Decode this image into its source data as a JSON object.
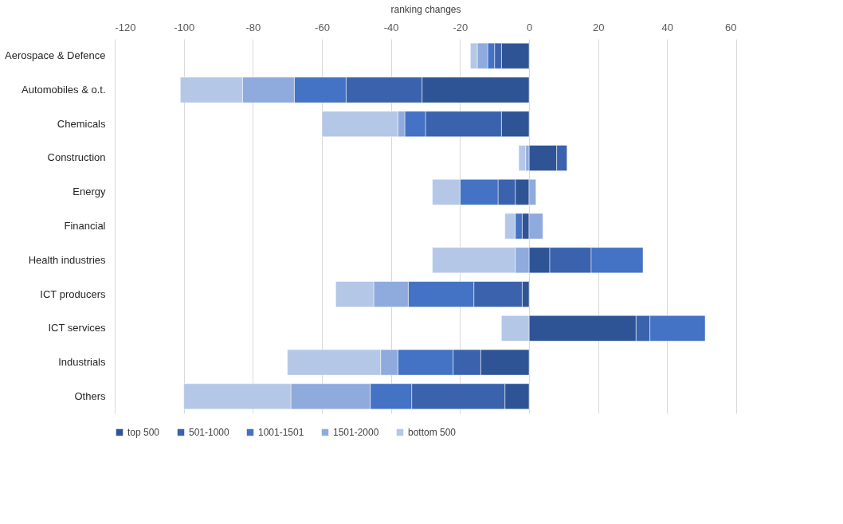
{
  "chart_data": {
    "type": "bar",
    "orientation": "horizontal",
    "stacked": true,
    "xlabel": "ranking changes",
    "categories": [
      "Aerospace & Defence",
      "Automobiles & o.t.",
      "Chemicals",
      "Construction",
      "Energy",
      "Financial",
      "Health industries",
      "ICT producers",
      "ICT services",
      "Industrials",
      "Others"
    ],
    "series": [
      {
        "name": "top 500",
        "color": "#2f5496",
        "values": [
          -8,
          -31,
          -8,
          8,
          -4,
          -2,
          6,
          -2,
          31,
          -14,
          -7
        ]
      },
      {
        "name": "501-1000",
        "color": "#3b62ad",
        "values": [
          -2,
          -22,
          -22,
          3,
          -5,
          null,
          12,
          -14,
          4,
          -8,
          -27
        ]
      },
      {
        "name": "1001-1501",
        "color": "#4472c4",
        "values": [
          -2,
          -15,
          -6,
          null,
          -11,
          -2,
          15,
          -19,
          16,
          -16,
          -12
        ]
      },
      {
        "name": "1501-2000",
        "color": "#8faadc",
        "values": [
          -3,
          -15,
          -2,
          -1,
          2,
          4,
          -4,
          -10,
          null,
          -5,
          -23
        ]
      },
      {
        "name": "bottom 500",
        "color": "#b4c7e7",
        "values": [
          -2,
          -18,
          -22,
          -2,
          -8,
          -3,
          -24,
          -11,
          -8,
          -27,
          -31
        ]
      }
    ],
    "xlim": [
      -120,
      60
    ],
    "xticks": [
      -120,
      -100,
      -80,
      -60,
      -40,
      -20,
      0,
      20,
      40,
      60
    ],
    "grid": "x",
    "legend": "bottom"
  }
}
